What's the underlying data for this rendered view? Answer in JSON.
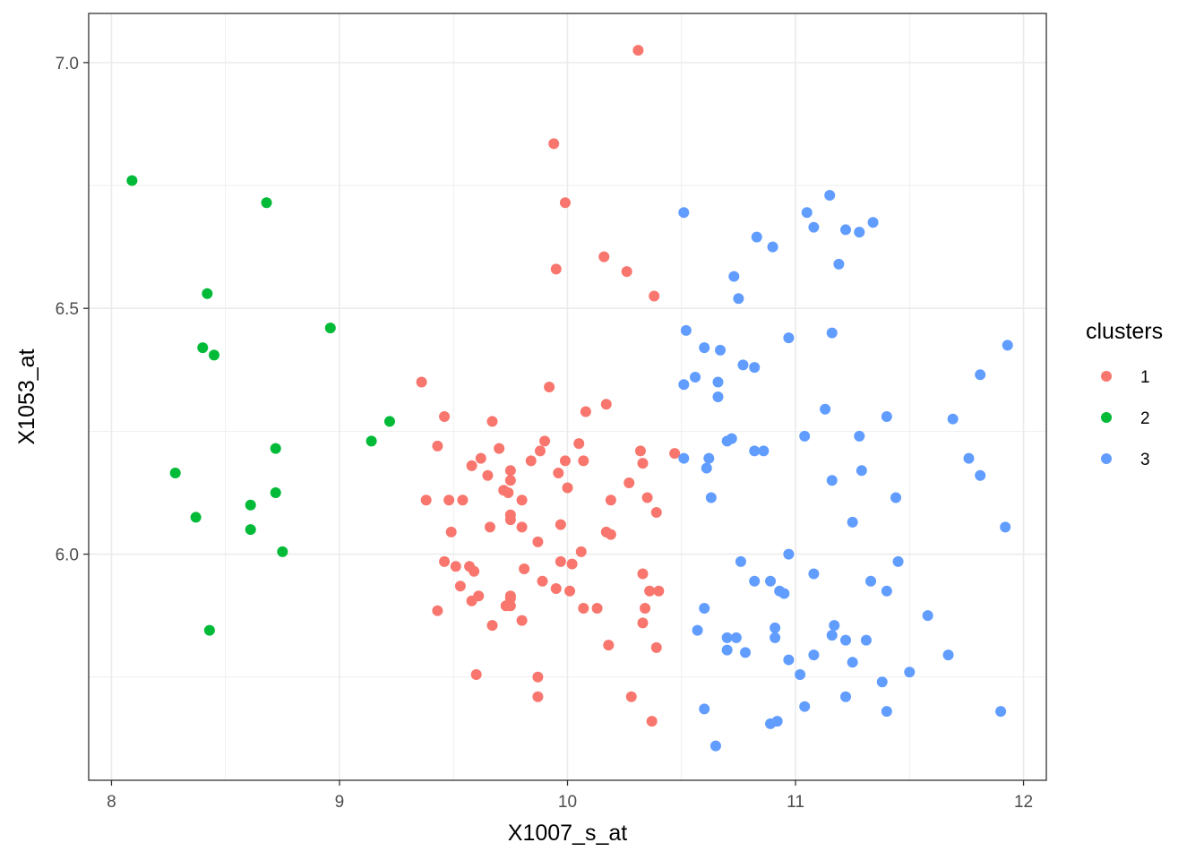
{
  "chart_data": {
    "type": "scatter",
    "title": "",
    "xlabel": "X1007_s_at",
    "ylabel": "X1053_at",
    "xlim": [
      7.9,
      12.1
    ],
    "ylim": [
      5.54,
      7.1
    ],
    "x_ticks": [
      8,
      9,
      10,
      11,
      12
    ],
    "y_ticks": [
      6.0,
      6.5,
      7.0
    ],
    "x_tick_labels": [
      "8",
      "9",
      "10",
      "11",
      "12"
    ],
    "y_tick_labels": [
      "6.0",
      "6.5",
      "7.0"
    ],
    "grid": true,
    "legend": {
      "title": "clusters",
      "placement": "right"
    },
    "series": [
      {
        "name": "1",
        "color": "#F8766D",
        "points": [
          [
            10.31,
            7.025
          ],
          [
            9.94,
            6.835
          ],
          [
            9.99,
            6.715
          ],
          [
            10.16,
            6.605
          ],
          [
            9.95,
            6.58
          ],
          [
            10.26,
            6.575
          ],
          [
            10.38,
            6.525
          ],
          [
            9.36,
            6.35
          ],
          [
            9.92,
            6.34
          ],
          [
            10.17,
            6.305
          ],
          [
            10.08,
            6.29
          ],
          [
            9.46,
            6.28
          ],
          [
            9.67,
            6.27
          ],
          [
            9.9,
            6.23
          ],
          [
            10.05,
            6.225
          ],
          [
            9.43,
            6.22
          ],
          [
            9.7,
            6.215
          ],
          [
            9.88,
            6.21
          ],
          [
            10.32,
            6.21
          ],
          [
            10.47,
            6.205
          ],
          [
            9.62,
            6.195
          ],
          [
            9.84,
            6.19
          ],
          [
            9.99,
            6.19
          ],
          [
            10.07,
            6.19
          ],
          [
            10.33,
            6.185
          ],
          [
            9.58,
            6.18
          ],
          [
            9.75,
            6.17
          ],
          [
            9.96,
            6.165
          ],
          [
            9.65,
            6.16
          ],
          [
            9.75,
            6.15
          ],
          [
            10.27,
            6.145
          ],
          [
            10.0,
            6.135
          ],
          [
            9.72,
            6.13
          ],
          [
            9.74,
            6.125
          ],
          [
            9.38,
            6.11
          ],
          [
            9.48,
            6.11
          ],
          [
            9.54,
            6.11
          ],
          [
            9.8,
            6.11
          ],
          [
            10.19,
            6.11
          ],
          [
            10.35,
            6.115
          ],
          [
            10.39,
            6.085
          ],
          [
            9.75,
            6.08
          ],
          [
            9.75,
            6.07
          ],
          [
            9.66,
            6.055
          ],
          [
            9.8,
            6.055
          ],
          [
            9.97,
            6.06
          ],
          [
            10.17,
            6.045
          ],
          [
            10.19,
            6.04
          ],
          [
            9.49,
            6.045
          ],
          [
            9.87,
            6.025
          ],
          [
            10.06,
            6.005
          ],
          [
            9.97,
            5.985
          ],
          [
            10.02,
            5.98
          ],
          [
            9.46,
            5.985
          ],
          [
            9.51,
            5.975
          ],
          [
            9.57,
            5.975
          ],
          [
            9.59,
            5.965
          ],
          [
            9.81,
            5.97
          ],
          [
            10.33,
            5.96
          ],
          [
            9.89,
            5.945
          ],
          [
            9.53,
            5.935
          ],
          [
            9.95,
            5.93
          ],
          [
            10.01,
            5.925
          ],
          [
            10.36,
            5.925
          ],
          [
            10.4,
            5.925
          ],
          [
            9.61,
            5.915
          ],
          [
            9.75,
            5.915
          ],
          [
            9.75,
            5.91
          ],
          [
            9.58,
            5.905
          ],
          [
            9.73,
            5.895
          ],
          [
            9.75,
            5.895
          ],
          [
            10.34,
            5.89
          ],
          [
            9.43,
            5.885
          ],
          [
            10.07,
            5.89
          ],
          [
            10.13,
            5.89
          ],
          [
            9.8,
            5.865
          ],
          [
            10.33,
            5.86
          ],
          [
            9.67,
            5.855
          ],
          [
            10.18,
            5.815
          ],
          [
            10.39,
            5.81
          ],
          [
            9.6,
            5.755
          ],
          [
            9.87,
            5.75
          ],
          [
            9.87,
            5.71
          ],
          [
            10.28,
            5.71
          ],
          [
            10.37,
            5.66
          ]
        ]
      },
      {
        "name": "2",
        "color": "#00BA38",
        "points": [
          [
            8.09,
            6.76
          ],
          [
            8.68,
            6.715
          ],
          [
            8.42,
            6.53
          ],
          [
            8.96,
            6.46
          ],
          [
            8.4,
            6.42
          ],
          [
            8.45,
            6.405
          ],
          [
            9.22,
            6.27
          ],
          [
            9.14,
            6.23
          ],
          [
            8.72,
            6.215
          ],
          [
            8.28,
            6.165
          ],
          [
            8.72,
            6.125
          ],
          [
            8.61,
            6.1
          ],
          [
            8.37,
            6.075
          ],
          [
            8.61,
            6.05
          ],
          [
            8.75,
            6.005
          ],
          [
            8.43,
            5.845
          ]
        ]
      },
      {
        "name": "3",
        "color": "#619CFF",
        "points": [
          [
            11.15,
            6.73
          ],
          [
            10.51,
            6.695
          ],
          [
            11.05,
            6.695
          ],
          [
            11.34,
            6.675
          ],
          [
            11.08,
            6.665
          ],
          [
            11.22,
            6.66
          ],
          [
            11.28,
            6.655
          ],
          [
            10.83,
            6.645
          ],
          [
            10.9,
            6.625
          ],
          [
            11.19,
            6.59
          ],
          [
            10.73,
            6.565
          ],
          [
            10.75,
            6.52
          ],
          [
            10.52,
            6.455
          ],
          [
            11.16,
            6.45
          ],
          [
            10.97,
            6.44
          ],
          [
            11.93,
            6.425
          ],
          [
            10.6,
            6.42
          ],
          [
            10.67,
            6.415
          ],
          [
            10.77,
            6.385
          ],
          [
            10.82,
            6.38
          ],
          [
            11.81,
            6.365
          ],
          [
            10.56,
            6.36
          ],
          [
            10.66,
            6.35
          ],
          [
            10.51,
            6.345
          ],
          [
            10.66,
            6.32
          ],
          [
            11.13,
            6.295
          ],
          [
            11.4,
            6.28
          ],
          [
            11.69,
            6.275
          ],
          [
            11.04,
            6.24
          ],
          [
            11.28,
            6.24
          ],
          [
            10.72,
            6.235
          ],
          [
            10.7,
            6.23
          ],
          [
            10.82,
            6.21
          ],
          [
            10.86,
            6.21
          ],
          [
            10.51,
            6.195
          ],
          [
            10.62,
            6.195
          ],
          [
            11.76,
            6.195
          ],
          [
            10.61,
            6.175
          ],
          [
            11.29,
            6.17
          ],
          [
            11.81,
            6.16
          ],
          [
            11.16,
            6.15
          ],
          [
            11.44,
            6.115
          ],
          [
            10.63,
            6.115
          ],
          [
            11.25,
            6.065
          ],
          [
            11.92,
            6.055
          ],
          [
            10.97,
            6.0
          ],
          [
            10.76,
            5.985
          ],
          [
            11.45,
            5.985
          ],
          [
            11.08,
            5.96
          ],
          [
            10.82,
            5.945
          ],
          [
            10.89,
            5.945
          ],
          [
            11.33,
            5.945
          ],
          [
            10.93,
            5.925
          ],
          [
            10.95,
            5.92
          ],
          [
            11.4,
            5.925
          ],
          [
            10.6,
            5.89
          ],
          [
            11.58,
            5.875
          ],
          [
            10.91,
            5.85
          ],
          [
            11.17,
            5.855
          ],
          [
            10.57,
            5.845
          ],
          [
            11.16,
            5.835
          ],
          [
            10.7,
            5.83
          ],
          [
            10.74,
            5.83
          ],
          [
            10.91,
            5.83
          ],
          [
            11.22,
            5.825
          ],
          [
            11.31,
            5.825
          ],
          [
            10.7,
            5.805
          ],
          [
            10.78,
            5.8
          ],
          [
            11.08,
            5.795
          ],
          [
            11.67,
            5.795
          ],
          [
            10.97,
            5.785
          ],
          [
            11.25,
            5.78
          ],
          [
            11.5,
            5.76
          ],
          [
            11.02,
            5.755
          ],
          [
            11.38,
            5.74
          ],
          [
            11.22,
            5.71
          ],
          [
            11.04,
            5.69
          ],
          [
            11.4,
            5.68
          ],
          [
            11.9,
            5.68
          ],
          [
            10.6,
            5.685
          ],
          [
            10.92,
            5.66
          ],
          [
            10.89,
            5.655
          ],
          [
            10.65,
            5.61
          ]
        ]
      }
    ]
  }
}
